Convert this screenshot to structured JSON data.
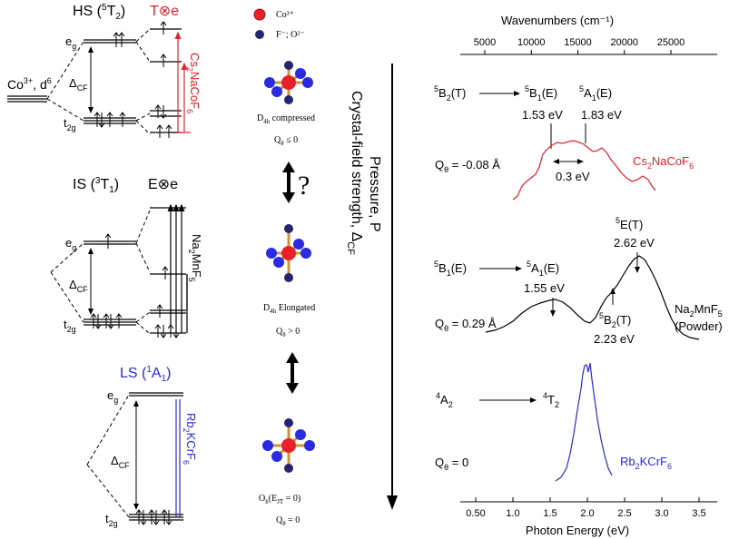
{
  "colors": {
    "black": "#000000",
    "red": "#e8202a",
    "blue": "#2a2ae0",
    "tan": "#c8953a",
    "navy": "#242470"
  },
  "left_panel": {
    "hs": {
      "title_main": "HS (",
      "title_sup": "5",
      "title_t": "T",
      "title_sub": "2",
      "title_close": ")",
      "coupling": "T⊗e",
      "compound_parts": [
        "Cs",
        "2",
        "NaCoF",
        "6"
      ]
    },
    "ion": {
      "label_main": "Co",
      "label_sup": "3+",
      "label_rest": ", d",
      "label_sup2": "6"
    },
    "is": {
      "title_main": "IS (",
      "title_sup": "3",
      "title_t": "T",
      "title_sub": "1",
      "title_close": ")",
      "coupling": "E⊗e",
      "compound_parts": [
        "Na",
        "2",
        "MnF",
        "5"
      ]
    },
    "ls": {
      "title_main": "LS (",
      "title_sup": "1",
      "title_t": "A",
      "title_sub": "1",
      "title_close": ")",
      "compound_parts": [
        "Rb",
        "2",
        "KCrF",
        "6"
      ]
    },
    "eg": {
      "main": "e",
      "sub": "g"
    },
    "t2g": {
      "main": "t",
      "sub": "2g"
    },
    "dcf": {
      "main": "Δ",
      "sub": "CF"
    }
  },
  "middle_panel": {
    "legend_co": "Co³⁺",
    "legend_f": "F⁻; O²⁻",
    "structures": [
      {
        "label_main": "D",
        "label_sub": "4h",
        "label_rest": " compressed",
        "q_main": "Q",
        "q_sub": "θ",
        "q_rest": " ≤ 0"
      },
      {
        "label_main": "D",
        "label_sub": "4h",
        "label_rest": " Elongated",
        "q_main": "Q",
        "q_sub": "θ",
        "q_rest": " > 0"
      },
      {
        "label_main": "O",
        "label_sub": "h",
        "label_rest": "(E",
        "label_sub2": "JT",
        "label_rest2": " = 0)",
        "q_main": "Q",
        "q_sub": "θ",
        "q_rest": " = 0"
      }
    ],
    "question_mark": "?",
    "vertical_text_1": "Crystal-field strength, Δ",
    "vertical_text_1_sub": "CF",
    "vertical_text_2": "Pressure, P"
  },
  "right_panel": {
    "top_axis_title": "Wavenumbers (cm⁻¹)",
    "top_ticks": [
      "5000",
      "10000",
      "15000",
      "20000",
      "25000"
    ],
    "bottom_axis_title": "Photon Energy (eV)",
    "bottom_ticks": [
      "0.50",
      "1.0",
      "1.5",
      "2.0",
      "2.5",
      "3.0",
      "3.5"
    ],
    "spectra": [
      {
        "compound_parts": [
          "Cs",
          "2",
          "NaCoF",
          "6"
        ],
        "q_label": "Qθ = -0.08 Å",
        "from_state": [
          "5",
          "B",
          "2",
          "(T)"
        ],
        "to_states": [
          [
            "5",
            "B",
            "1",
            "(E)"
          ],
          [
            "5",
            "A",
            "1",
            "(E)"
          ]
        ],
        "energies": [
          "1.53 eV",
          "1.83 eV"
        ],
        "splitting": "0.3 eV"
      },
      {
        "compound_parts": [
          "Na",
          "2",
          "MnF",
          "5"
        ],
        "note": "(Powder)",
        "q_label": "Qθ = 0.29 Å",
        "from_state": [
          "5",
          "B",
          "1",
          "(E)"
        ],
        "to_states": [
          [
            "5",
            "A",
            "1",
            "(E)"
          ],
          [
            "5",
            "B",
            "2",
            "(T)"
          ],
          [
            "5",
            "E",
            "",
            "(T)"
          ]
        ],
        "energies": [
          "1.55 eV",
          "2.23 eV",
          "2.62 eV"
        ]
      },
      {
        "compound_parts": [
          "Rb",
          "2",
          "KCrF",
          "6"
        ],
        "q_label": "Qθ = 0",
        "from_state": [
          "4",
          "A",
          "2",
          ""
        ],
        "to_states": [
          [
            "4",
            "T",
            "2",
            ""
          ]
        ]
      }
    ]
  }
}
